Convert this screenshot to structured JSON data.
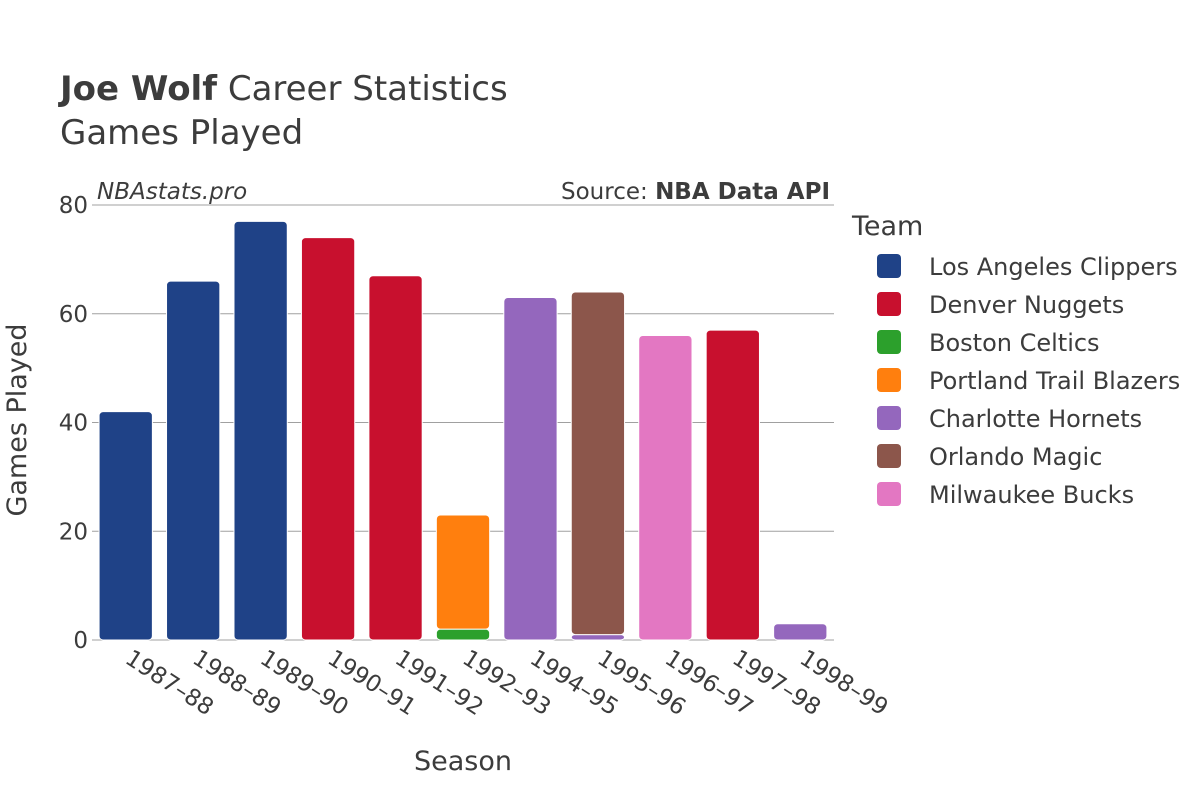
{
  "chart_data": {
    "type": "bar",
    "stacked": true,
    "title_bold": "Joe Wolf",
    "title_rest": " Career Statistics",
    "subtitle": "Games Played",
    "watermark": "NBAstats.pro",
    "source_prefix": "Source: ",
    "source_bold": "NBA Data API",
    "xlabel": "Season",
    "ylabel": "Games Played",
    "ylim": [
      0,
      80
    ],
    "yticks": [
      0,
      20,
      40,
      60,
      80
    ],
    "grid": true,
    "legend_title": "Team",
    "legend_position": "right",
    "categories": [
      "1987–88",
      "1988–89",
      "1989–90",
      "1990–91",
      "1991–92",
      "1992–93",
      "1994–95",
      "1995–96",
      "1996–97",
      "1997–98",
      "1998–99"
    ],
    "series": [
      {
        "name": "Los Angeles Clippers",
        "color": "#1f4287",
        "values": [
          42,
          66,
          77,
          0,
          0,
          0,
          0,
          0,
          0,
          0,
          0
        ]
      },
      {
        "name": "Denver Nuggets",
        "color": "#c8102e",
        "values": [
          0,
          0,
          0,
          74,
          67,
          0,
          0,
          0,
          0,
          57,
          0
        ]
      },
      {
        "name": "Boston Celtics",
        "color": "#2ca02c",
        "values": [
          0,
          0,
          0,
          0,
          0,
          2,
          0,
          0,
          0,
          0,
          0
        ]
      },
      {
        "name": "Portland Trail Blazers",
        "color": "#ff7f0e",
        "values": [
          0,
          0,
          0,
          0,
          0,
          21,
          0,
          0,
          0,
          0,
          0
        ]
      },
      {
        "name": "Charlotte Hornets",
        "color": "#9467bd",
        "values": [
          0,
          0,
          0,
          0,
          0,
          0,
          63,
          1,
          0,
          0,
          3
        ]
      },
      {
        "name": "Orlando Magic",
        "color": "#8c564b",
        "values": [
          0,
          0,
          0,
          0,
          0,
          0,
          0,
          63,
          0,
          0,
          0
        ]
      },
      {
        "name": "Milwaukee Bucks",
        "color": "#e377c2",
        "values": [
          0,
          0,
          0,
          0,
          0,
          0,
          0,
          0,
          56,
          0,
          0
        ]
      }
    ]
  }
}
